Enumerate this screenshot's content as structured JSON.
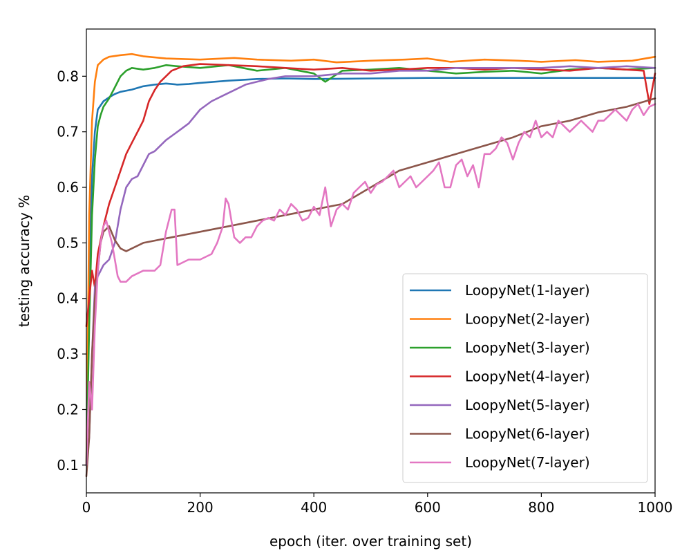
{
  "chart_data": {
    "type": "line",
    "title": "",
    "xlabel": "epoch (iter. over training set)",
    "ylabel": "testing accuracy %",
    "xlim": [
      0,
      1000
    ],
    "ylim": [
      0.05,
      0.885
    ],
    "xticks": [
      0,
      200,
      400,
      600,
      800,
      1000
    ],
    "xtick_labels": [
      "0",
      "200",
      "400",
      "600",
      "800",
      "1000"
    ],
    "yticks": [
      0.1,
      0.2,
      0.3,
      0.4,
      0.5,
      0.6,
      0.7,
      0.8
    ],
    "ytick_labels": [
      "0.1",
      "0.2",
      "0.3",
      "0.4",
      "0.5",
      "0.6",
      "0.7",
      "0.8"
    ],
    "grid": false,
    "legend_position": "lower-right",
    "series": [
      {
        "name": "LoopyNet(1-layer)",
        "color": "#1f77b4",
        "x": [
          0,
          5,
          10,
          15,
          20,
          30,
          40,
          50,
          60,
          80,
          100,
          120,
          140,
          160,
          180,
          200,
          250,
          300,
          350,
          400,
          500,
          600,
          700,
          800,
          900,
          1000
        ],
        "y": [
          0.1,
          0.45,
          0.62,
          0.7,
          0.74,
          0.755,
          0.762,
          0.768,
          0.772,
          0.776,
          0.782,
          0.785,
          0.787,
          0.785,
          0.786,
          0.788,
          0.792,
          0.795,
          0.796,
          0.795,
          0.796,
          0.797,
          0.797,
          0.797,
          0.797,
          0.797
        ]
      },
      {
        "name": "LoopyNet(2-layer)",
        "color": "#ff7f0e",
        "x": [
          0,
          5,
          10,
          15,
          20,
          30,
          40,
          60,
          80,
          100,
          140,
          200,
          260,
          300,
          360,
          400,
          440,
          500,
          560,
          600,
          640,
          700,
          760,
          800,
          860,
          900,
          960,
          1000
        ],
        "y": [
          0.1,
          0.55,
          0.72,
          0.79,
          0.82,
          0.83,
          0.835,
          0.838,
          0.84,
          0.836,
          0.832,
          0.83,
          0.833,
          0.83,
          0.828,
          0.83,
          0.825,
          0.828,
          0.83,
          0.832,
          0.826,
          0.83,
          0.828,
          0.826,
          0.829,
          0.826,
          0.828,
          0.835
        ]
      },
      {
        "name": "LoopyNet(3-layer)",
        "color": "#2ca02c",
        "x": [
          0,
          5,
          10,
          15,
          20,
          25,
          30,
          40,
          50,
          60,
          70,
          80,
          100,
          120,
          140,
          160,
          200,
          250,
          300,
          350,
          400,
          420,
          450,
          500,
          550,
          600,
          650,
          700,
          750,
          800,
          850,
          900,
          950,
          1000
        ],
        "y": [
          0.1,
          0.35,
          0.55,
          0.65,
          0.71,
          0.73,
          0.745,
          0.76,
          0.78,
          0.8,
          0.81,
          0.815,
          0.812,
          0.815,
          0.82,
          0.818,
          0.815,
          0.82,
          0.81,
          0.815,
          0.805,
          0.79,
          0.81,
          0.812,
          0.815,
          0.81,
          0.805,
          0.808,
          0.81,
          0.805,
          0.812,
          0.815,
          0.812,
          0.815
        ]
      },
      {
        "name": "LoopyNet(4-layer)",
        "color": "#d62728",
        "x": [
          0,
          5,
          10,
          15,
          20,
          30,
          40,
          50,
          60,
          70,
          80,
          90,
          100,
          110,
          120,
          130,
          140,
          150,
          170,
          200,
          250,
          300,
          350,
          400,
          450,
          500,
          550,
          600,
          650,
          700,
          750,
          800,
          850,
          900,
          950,
          980,
          990,
          1000
        ],
        "y": [
          0.35,
          0.4,
          0.45,
          0.42,
          0.48,
          0.53,
          0.57,
          0.6,
          0.63,
          0.66,
          0.68,
          0.7,
          0.72,
          0.755,
          0.775,
          0.79,
          0.8,
          0.81,
          0.818,
          0.822,
          0.82,
          0.818,
          0.815,
          0.812,
          0.815,
          0.81,
          0.812,
          0.815,
          0.815,
          0.812,
          0.815,
          0.812,
          0.81,
          0.815,
          0.812,
          0.81,
          0.75,
          0.805
        ]
      },
      {
        "name": "LoopyNet(5-layer)",
        "color": "#9467bd",
        "x": [
          0,
          5,
          10,
          15,
          20,
          25,
          30,
          40,
          50,
          60,
          70,
          80,
          90,
          100,
          110,
          120,
          140,
          160,
          180,
          200,
          220,
          240,
          260,
          280,
          300,
          320,
          350,
          380,
          400,
          450,
          500,
          550,
          600,
          650,
          700,
          750,
          800,
          850,
          900,
          950,
          1000
        ],
        "y": [
          0.1,
          0.15,
          0.3,
          0.42,
          0.44,
          0.45,
          0.46,
          0.47,
          0.5,
          0.56,
          0.6,
          0.615,
          0.62,
          0.64,
          0.66,
          0.665,
          0.685,
          0.7,
          0.715,
          0.74,
          0.755,
          0.765,
          0.775,
          0.785,
          0.79,
          0.795,
          0.8,
          0.8,
          0.8,
          0.805,
          0.805,
          0.81,
          0.81,
          0.815,
          0.815,
          0.815,
          0.815,
          0.818,
          0.815,
          0.818,
          0.815
        ]
      },
      {
        "name": "LoopyNet(6-layer)",
        "color": "#8c564b",
        "x": [
          0,
          5,
          10,
          15,
          20,
          25,
          30,
          40,
          50,
          60,
          70,
          80,
          100,
          150,
          200,
          250,
          300,
          350,
          400,
          450,
          500,
          550,
          600,
          650,
          700,
          750,
          800,
          850,
          900,
          950,
          1000
        ],
        "y": [
          0.08,
          0.15,
          0.3,
          0.4,
          0.45,
          0.5,
          0.52,
          0.53,
          0.505,
          0.49,
          0.485,
          0.49,
          0.5,
          0.51,
          0.52,
          0.53,
          0.54,
          0.55,
          0.56,
          0.57,
          0.6,
          0.63,
          0.645,
          0.66,
          0.675,
          0.69,
          0.71,
          0.72,
          0.735,
          0.745,
          0.76
        ]
      },
      {
        "name": "LoopyNet(7-layer)",
        "color": "#e377c2",
        "x": [
          0,
          5,
          10,
          15,
          20,
          25,
          30,
          35,
          40,
          45,
          50,
          55,
          60,
          70,
          80,
          90,
          100,
          110,
          120,
          125,
          130,
          140,
          150,
          155,
          160,
          170,
          180,
          200,
          220,
          230,
          240,
          245,
          250,
          260,
          270,
          280,
          290,
          300,
          310,
          320,
          330,
          340,
          350,
          360,
          370,
          380,
          390,
          400,
          410,
          420,
          430,
          440,
          450,
          460,
          470,
          480,
          490,
          500,
          510,
          520,
          530,
          540,
          550,
          560,
          570,
          580,
          590,
          600,
          610,
          620,
          630,
          640,
          650,
          660,
          670,
          680,
          690,
          700,
          710,
          720,
          730,
          740,
          750,
          760,
          770,
          780,
          790,
          800,
          810,
          820,
          830,
          840,
          850,
          860,
          870,
          880,
          890,
          900,
          910,
          920,
          930,
          940,
          950,
          960,
          970,
          980,
          990,
          1000
        ],
        "y": [
          0.1,
          0.25,
          0.2,
          0.35,
          0.45,
          0.5,
          0.53,
          0.54,
          0.52,
          0.5,
          0.47,
          0.44,
          0.43,
          0.43,
          0.44,
          0.445,
          0.45,
          0.45,
          0.45,
          0.455,
          0.46,
          0.52,
          0.56,
          0.56,
          0.46,
          0.465,
          0.47,
          0.47,
          0.48,
          0.5,
          0.53,
          0.58,
          0.57,
          0.51,
          0.5,
          0.51,
          0.51,
          0.53,
          0.54,
          0.545,
          0.54,
          0.56,
          0.55,
          0.57,
          0.56,
          0.54,
          0.545,
          0.565,
          0.55,
          0.6,
          0.53,
          0.56,
          0.57,
          0.56,
          0.59,
          0.6,
          0.61,
          0.59,
          0.605,
          0.61,
          0.62,
          0.63,
          0.6,
          0.61,
          0.62,
          0.6,
          0.61,
          0.62,
          0.63,
          0.645,
          0.6,
          0.6,
          0.64,
          0.65,
          0.62,
          0.64,
          0.6,
          0.66,
          0.66,
          0.67,
          0.69,
          0.68,
          0.65,
          0.68,
          0.7,
          0.69,
          0.72,
          0.69,
          0.7,
          0.69,
          0.72,
          0.71,
          0.7,
          0.71,
          0.72,
          0.71,
          0.7,
          0.72,
          0.72,
          0.73,
          0.74,
          0.73,
          0.72,
          0.74,
          0.75,
          0.73,
          0.745,
          0.75
        ]
      }
    ]
  }
}
